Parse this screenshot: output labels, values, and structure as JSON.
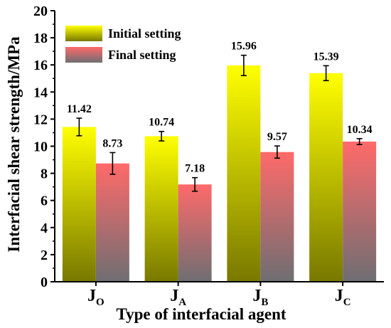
{
  "chart_data": {
    "type": "bar",
    "categories": [
      {
        "main": "J",
        "sub": "O"
      },
      {
        "main": "J",
        "sub": "A"
      },
      {
        "main": "J",
        "sub": "B"
      },
      {
        "main": "J",
        "sub": "C"
      }
    ],
    "series": [
      {
        "name": "Initial setting",
        "values": [
          11.42,
          10.74,
          15.96,
          15.39
        ],
        "labels": [
          "11.42",
          "10.74",
          "15.96",
          "15.39"
        ],
        "errors": [
          0.65,
          0.35,
          0.75,
          0.55
        ],
        "gradient": [
          "#ffff00",
          "#787800"
        ]
      },
      {
        "name": "Final setting",
        "values": [
          8.73,
          7.18,
          9.57,
          10.34
        ],
        "labels": [
          "8.73",
          "7.18",
          "9.57",
          "10.34"
        ],
        "errors": [
          0.8,
          0.5,
          0.45,
          0.22
        ],
        "gradient": [
          "#ff6a6a",
          "#6e6e72"
        ]
      }
    ],
    "xlabel": "Type of interfacial agent",
    "ylabel": "Interfacial shear strength/MPa",
    "ylim": [
      0,
      20
    ],
    "yticks": [
      "0",
      "2",
      "4",
      "6",
      "8",
      "10",
      "12",
      "14",
      "16",
      "18",
      "20"
    ],
    "legend_position": "top-left",
    "grid": false
  }
}
